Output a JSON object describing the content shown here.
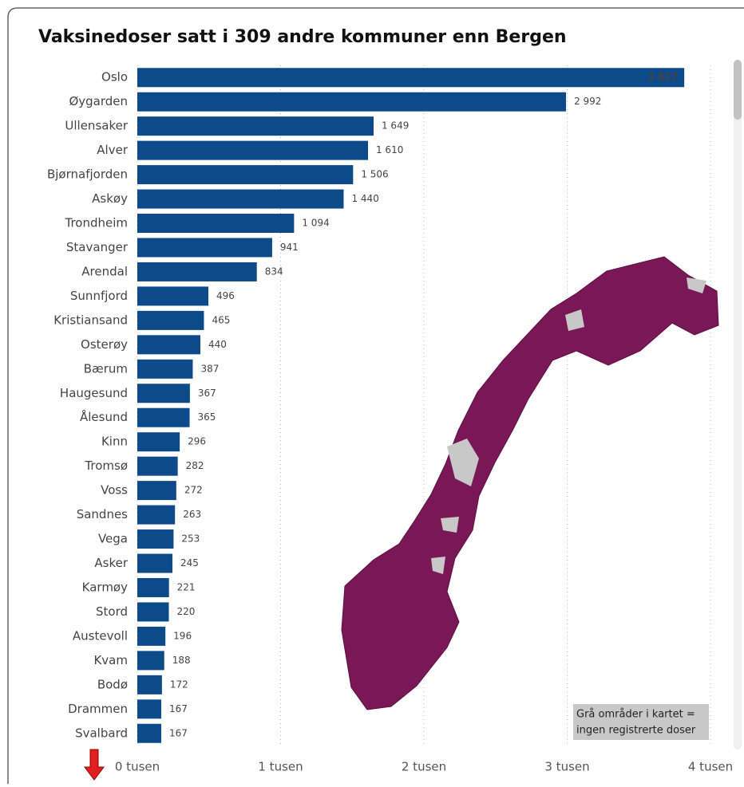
{
  "chart_data": {
    "type": "bar",
    "orientation": "horizontal",
    "title": "Vaksinedoser satt i 309 andre kommuner enn Bergen",
    "categories": [
      "Oslo",
      "Øygarden",
      "Ullensaker",
      "Alver",
      "Bjørnafjorden",
      "Askøy",
      "Trondheim",
      "Stavanger",
      "Arendal",
      "Sunnfjord",
      "Kristiansand",
      "Osterøy",
      "Bærum",
      "Haugesund",
      "Ålesund",
      "Kinn",
      "Tromsø",
      "Voss",
      "Sandnes",
      "Vega",
      "Asker",
      "Karmøy",
      "Stord",
      "Austevoll",
      "Kvam",
      "Bodø",
      "Drammen",
      "Svalbard"
    ],
    "values": [
      3817,
      2992,
      1649,
      1610,
      1506,
      1440,
      1094,
      941,
      834,
      496,
      465,
      440,
      387,
      367,
      365,
      296,
      282,
      272,
      263,
      253,
      245,
      221,
      220,
      196,
      188,
      172,
      167,
      167
    ],
    "value_labels": [
      "3 817",
      "2 992",
      "1 649",
      "1 610",
      "1 506",
      "1 440",
      "1 094",
      "941",
      "834",
      "496",
      "465",
      "440",
      "387",
      "367",
      "365",
      "296",
      "282",
      "272",
      "263",
      "253",
      "245",
      "221",
      "220",
      "196",
      "188",
      "172",
      "167",
      "167"
    ],
    "color": "#0d4a8a",
    "xlim": [
      0,
      4000
    ],
    "xticks": [
      {
        "value": 0,
        "label": "0 tusen"
      },
      {
        "value": 1000,
        "label": "1 tusen"
      },
      {
        "value": 2000,
        "label": "2 tusen"
      },
      {
        "value": 3000,
        "label": "3 tusen"
      },
      {
        "value": 4000,
        "label": "4 tusen"
      }
    ],
    "grid": true,
    "annotation": [
      "Grå områder i kartet =",
      "ingen registrerte doser"
    ]
  }
}
